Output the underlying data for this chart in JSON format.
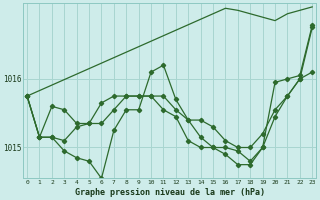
{
  "background_color": "#ceecea",
  "grid_color": "#a8d5d0",
  "line_color": "#2d6a2d",
  "title": "Graphe pression niveau de la mer (hPa)",
  "xlabel_ticks": [
    0,
    1,
    2,
    3,
    4,
    5,
    6,
    7,
    8,
    9,
    10,
    11,
    12,
    13,
    14,
    15,
    16,
    17,
    18,
    19,
    20,
    21,
    22,
    23
  ],
  "yticks": [
    1015,
    1016
  ],
  "ylim": [
    1014.55,
    1017.1
  ],
  "xlim": [
    -0.3,
    23.3
  ],
  "series_with_markers": [
    [
      1015.75,
      1015.15,
      1015.15,
      1014.95,
      1014.85,
      1014.8,
      1014.55,
      1015.25,
      1015.55,
      1015.55,
      1016.1,
      1016.2,
      1015.7,
      1015.4,
      1015.15,
      1015.0,
      1015.0,
      1014.95,
      1014.8,
      1015.0,
      1015.95,
      1016.0,
      1016.05,
      1016.78
    ],
    [
      1015.75,
      1015.15,
      1015.15,
      1015.1,
      1015.3,
      1015.35,
      1015.65,
      1015.75,
      1015.75,
      1015.75,
      1015.75,
      1015.75,
      1015.55,
      1015.4,
      1015.4,
      1015.3,
      1015.1,
      1015.0,
      1015.0,
      1015.2,
      1015.55,
      1015.75,
      1016.0,
      1016.1
    ],
    [
      1015.75,
      1015.15,
      1015.6,
      1015.55,
      1015.35,
      1015.35,
      1015.35,
      1015.55,
      1015.75,
      1015.75,
      1015.75,
      1015.55,
      1015.45,
      1015.1,
      1015.0,
      1015.0,
      1014.9,
      1014.75,
      1014.75,
      1015.0,
      1015.45,
      1015.75,
      1016.0,
      1016.75
    ]
  ],
  "series_line_only": [
    [
      1015.75,
      1015.83,
      1015.91,
      1015.99,
      1016.07,
      1016.15,
      1016.23,
      1016.31,
      1016.39,
      1016.47,
      1016.55,
      1016.63,
      1016.71,
      1016.79,
      1016.87,
      1016.95,
      1017.03,
      1017.0,
      1016.95,
      1016.9,
      1016.85,
      1016.95,
      1017.0,
      1017.05
    ]
  ]
}
